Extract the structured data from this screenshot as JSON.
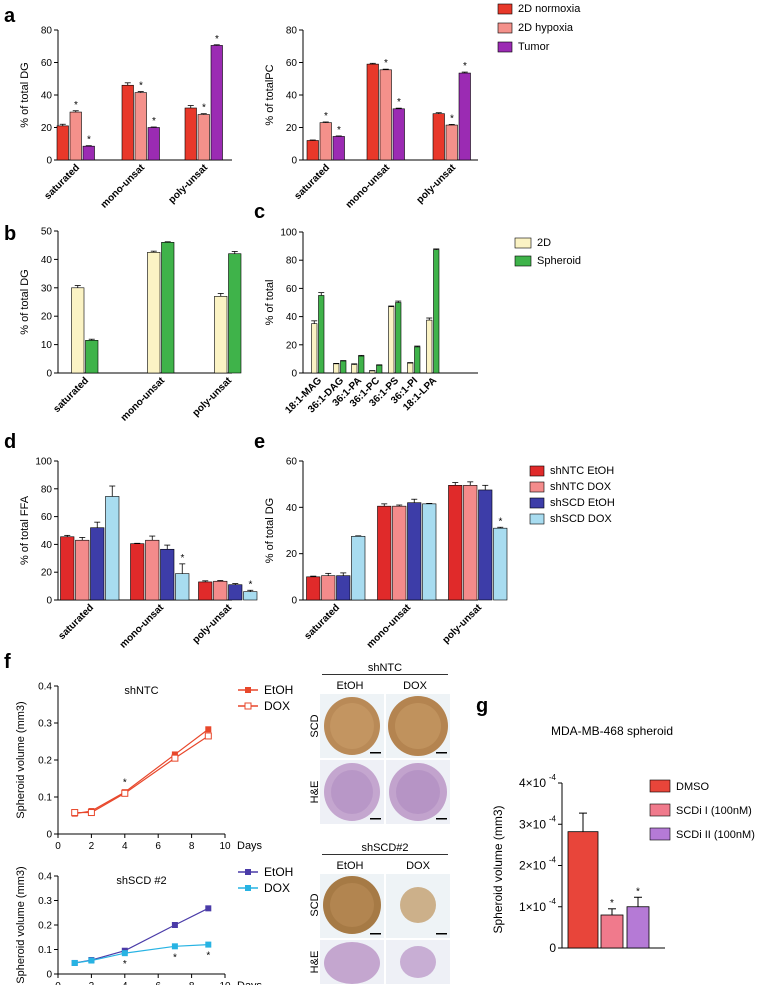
{
  "colors": {
    "normoxia": "#e8382a",
    "hypoxia": "#f4918b",
    "tumor": "#9b2bb3",
    "d2": "#fbf3c4",
    "spheroid": "#3fb34a",
    "ntc_etoh": "#e02a2a",
    "ntc_dox": "#f48b8b",
    "scd_etoh": "#3d3da8",
    "scd_dox": "#a8dcf0",
    "line_red": "#e8472b",
    "line_purple": "#4a3ba8",
    "line_cyan": "#27b3e3",
    "g_dmso": "#e8453a",
    "g_scdi1": "#f07a8c",
    "g_scdi2": "#b57ad6"
  },
  "panel_labels": [
    "a",
    "b",
    "c",
    "d",
    "e",
    "f",
    "g"
  ],
  "chart_data": [
    {
      "id": "a1",
      "type": "bar",
      "ylabel": "% of total DG",
      "ylim": [
        0,
        80
      ],
      "yticks": [
        0,
        20,
        40,
        60,
        80
      ],
      "categories": [
        "saturated",
        "mono-unsat",
        "poly-unsat"
      ],
      "series": [
        {
          "name": "2D normoxia",
          "values": [
            21,
            46,
            32
          ],
          "err": [
            1,
            1.5,
            1.5
          ],
          "star": [
            false,
            false,
            false
          ]
        },
        {
          "name": "2D hypoxia",
          "values": [
            29.5,
            41.5,
            28
          ],
          "err": [
            0.8,
            0.6,
            0.5
          ],
          "star": [
            true,
            true,
            true
          ]
        },
        {
          "name": "Tumor",
          "values": [
            8.5,
            20,
            70.5
          ],
          "err": [
            0.3,
            0.3,
            0.4
          ],
          "star": [
            true,
            true,
            true
          ]
        }
      ]
    },
    {
      "id": "a2",
      "type": "bar",
      "ylabel": "% of totalPC",
      "ylim": [
        0,
        80
      ],
      "yticks": [
        0,
        20,
        40,
        60,
        80
      ],
      "categories": [
        "saturated",
        "mono-unsat",
        "poly-unsat"
      ],
      "series": [
        {
          "name": "2D normoxia",
          "values": [
            12,
            59,
            28.5
          ],
          "err": [
            0.3,
            0.5,
            0.6
          ],
          "star": [
            false,
            false,
            false
          ]
        },
        {
          "name": "2D hypoxia",
          "values": [
            23,
            55.5,
            21.5
          ],
          "err": [
            0.4,
            0.4,
            0.4
          ],
          "star": [
            true,
            true,
            true
          ]
        },
        {
          "name": "Tumor",
          "values": [
            14.5,
            31.5,
            53.5
          ],
          "err": [
            0.3,
            0.4,
            0.6
          ],
          "star": [
            true,
            true,
            true
          ]
        }
      ]
    },
    {
      "id": "b",
      "type": "bar",
      "ylabel": "% of total DG",
      "ylim": [
        0,
        50
      ],
      "yticks": [
        0,
        10,
        20,
        30,
        40,
        50
      ],
      "categories": [
        "saturated",
        "mono-unsat",
        "poly-unsat"
      ],
      "series": [
        {
          "name": "2D",
          "values": [
            30,
            42.5,
            27
          ],
          "err": [
            0.8,
            0.4,
            1
          ],
          "star": [
            false,
            false,
            false
          ]
        },
        {
          "name": "Spheroid",
          "values": [
            11.5,
            46,
            42
          ],
          "err": [
            0.4,
            0.2,
            0.8
          ],
          "star": [
            false,
            false,
            false
          ]
        }
      ]
    },
    {
      "id": "c",
      "type": "bar",
      "ylabel": "% of total",
      "ylim": [
        0,
        100
      ],
      "yticks": [
        0,
        20,
        40,
        60,
        80,
        100
      ],
      "categories": [
        "18:1-MAG",
        "36:1-DAG",
        "36:1-PA",
        "36:1-PC",
        "36:1-PS",
        "36:1-PI",
        "18:1-LPA"
      ],
      "series": [
        {
          "name": "2D",
          "values": [
            35,
            6.5,
            6,
            1.5,
            47,
            7,
            37.5
          ],
          "err": [
            2,
            0.3,
            0.5,
            0.2,
            0.5,
            0.4,
            1.5
          ],
          "star": [
            false,
            false,
            false,
            false,
            false,
            false,
            false
          ]
        },
        {
          "name": "Spheroid",
          "values": [
            55,
            8.5,
            12,
            5.5,
            50,
            18.5,
            87.5
          ],
          "err": [
            2,
            0.3,
            0.5,
            0.3,
            1,
            0.6,
            0.5
          ],
          "star": [
            false,
            false,
            false,
            false,
            false,
            false,
            false
          ]
        }
      ]
    },
    {
      "id": "d",
      "type": "bar",
      "ylabel": "% of total FFA",
      "ylim": [
        0,
        100
      ],
      "yticks": [
        0,
        20,
        40,
        60,
        80,
        100
      ],
      "categories": [
        "saturated",
        "mono-unsat",
        "poly-unsat"
      ],
      "series": [
        {
          "name": "shNTC EtOH",
          "values": [
            45.5,
            40.5,
            13
          ],
          "err": [
            1,
            0.3,
            0.8
          ],
          "star": [
            false,
            false,
            false
          ]
        },
        {
          "name": "shNTC DOX",
          "values": [
            43,
            43,
            13.5
          ],
          "err": [
            2,
            3,
            0.5
          ],
          "star": [
            false,
            false,
            false
          ]
        },
        {
          "name": "shSCD EtOH",
          "values": [
            52,
            36.5,
            11
          ],
          "err": [
            4,
            3,
            0.8
          ],
          "star": [
            false,
            false,
            false
          ]
        },
        {
          "name": "shSCD DOX",
          "values": [
            74.5,
            19,
            6
          ],
          "err": [
            7.5,
            7,
            1
          ],
          "star": [
            false,
            true,
            true
          ]
        }
      ]
    },
    {
      "id": "e",
      "type": "bar",
      "ylabel": "% of total DG",
      "ylim": [
        0,
        60
      ],
      "yticks": [
        0,
        20,
        40,
        60
      ],
      "categories": [
        "saturated",
        "mono-unsat",
        "poly-unsat"
      ],
      "series": [
        {
          "name": "shNTC EtOH",
          "values": [
            10,
            40.5,
            49.5
          ],
          "err": [
            0.3,
            1,
            1.2
          ],
          "star": [
            false,
            false,
            false
          ]
        },
        {
          "name": "shNTC DOX",
          "values": [
            10.5,
            40.5,
            49.5
          ],
          "err": [
            1,
            0.5,
            1.5
          ],
          "star": [
            false,
            false,
            false
          ]
        },
        {
          "name": "shSCD EtOH",
          "values": [
            10.5,
            42,
            47.5
          ],
          "err": [
            1.2,
            1.5,
            2
          ],
          "star": [
            false,
            false,
            false
          ]
        },
        {
          "name": "shSCD DOX",
          "values": [
            27.5,
            41.5,
            31
          ],
          "err": [
            0.2,
            0.2,
            0.4
          ],
          "star": [
            false,
            false,
            true
          ]
        }
      ]
    },
    {
      "id": "f1",
      "type": "line",
      "title": "shNTC",
      "xlabel": "Days",
      "ylabel": "Spheroid volume (mm3)",
      "xlim": [
        0,
        10
      ],
      "xticks": [
        0,
        2,
        4,
        6,
        8,
        10
      ],
      "ylim": [
        0,
        0.4
      ],
      "yticks": [
        0,
        0.1,
        0.2,
        0.3,
        0.4
      ],
      "x": [
        1,
        2,
        4,
        7,
        9
      ],
      "series": [
        {
          "name": "EtOH",
          "values": [
            0.055,
            0.062,
            0.113,
            0.215,
            0.283
          ],
          "marker": "filled",
          "stars": []
        },
        {
          "name": "DOX",
          "values": [
            0.058,
            0.058,
            0.11,
            0.205,
            0.265
          ],
          "marker": "open",
          "stars": [
            4
          ]
        }
      ]
    },
    {
      "id": "f2",
      "type": "line",
      "title": "shSCD #2",
      "xlabel": "Days",
      "ylabel": "Spheroid volume (mm3)",
      "xlim": [
        0,
        10
      ],
      "xticks": [
        0,
        2,
        4,
        6,
        8,
        10
      ],
      "ylim": [
        0,
        0.4
      ],
      "yticks": [
        0,
        0.1,
        0.2,
        0.3,
        0.4
      ],
      "x": [
        1,
        2,
        4,
        7,
        9
      ],
      "series": [
        {
          "name": "EtOH",
          "values": [
            0.045,
            0.057,
            0.095,
            0.2,
            0.268
          ],
          "marker": "filled",
          "stars": []
        },
        {
          "name": "DOX",
          "values": [
            0.045,
            0.055,
            0.085,
            0.113,
            0.12
          ],
          "marker": "filled",
          "stars": [
            4,
            7,
            9
          ]
        }
      ]
    },
    {
      "id": "g",
      "type": "bar",
      "title": "MDA-MB-468 spheroid",
      "ylabel": "Spheroid volume (mm3)",
      "ylim": [
        0,
        0.0004
      ],
      "ytick_labels": [
        "0",
        "1×10",
        "2×10",
        "3×10",
        "4×10"
      ],
      "ytick_exp": "-4",
      "categories": [
        "DMSO",
        "SCDi I (100nM)",
        "SCDi II (100nM)"
      ],
      "values": [
        0.000282,
        8e-05,
        0.0001
      ],
      "err": [
        4.5e-05,
        1.5e-05,
        2.3e-05
      ],
      "star": [
        false,
        true,
        true
      ]
    }
  ],
  "legends": {
    "a": [
      "2D normoxia",
      "2D hypoxia",
      "Tumor"
    ],
    "c": [
      "2D",
      "Spheroid"
    ],
    "de": [
      "shNTC EtOH",
      "shNTC DOX",
      "shSCD EtOH",
      "shSCD DOX"
    ],
    "g": [
      "DMSO",
      "SCDi I (100nM)",
      "SCDi II (100nM)"
    ]
  },
  "micrographs": {
    "top_title": "shNTC",
    "bottom_title": "shSCD#2",
    "col_labels": [
      "EtOH",
      "DOX"
    ],
    "row_labels": [
      "SCD",
      "H&E"
    ]
  }
}
